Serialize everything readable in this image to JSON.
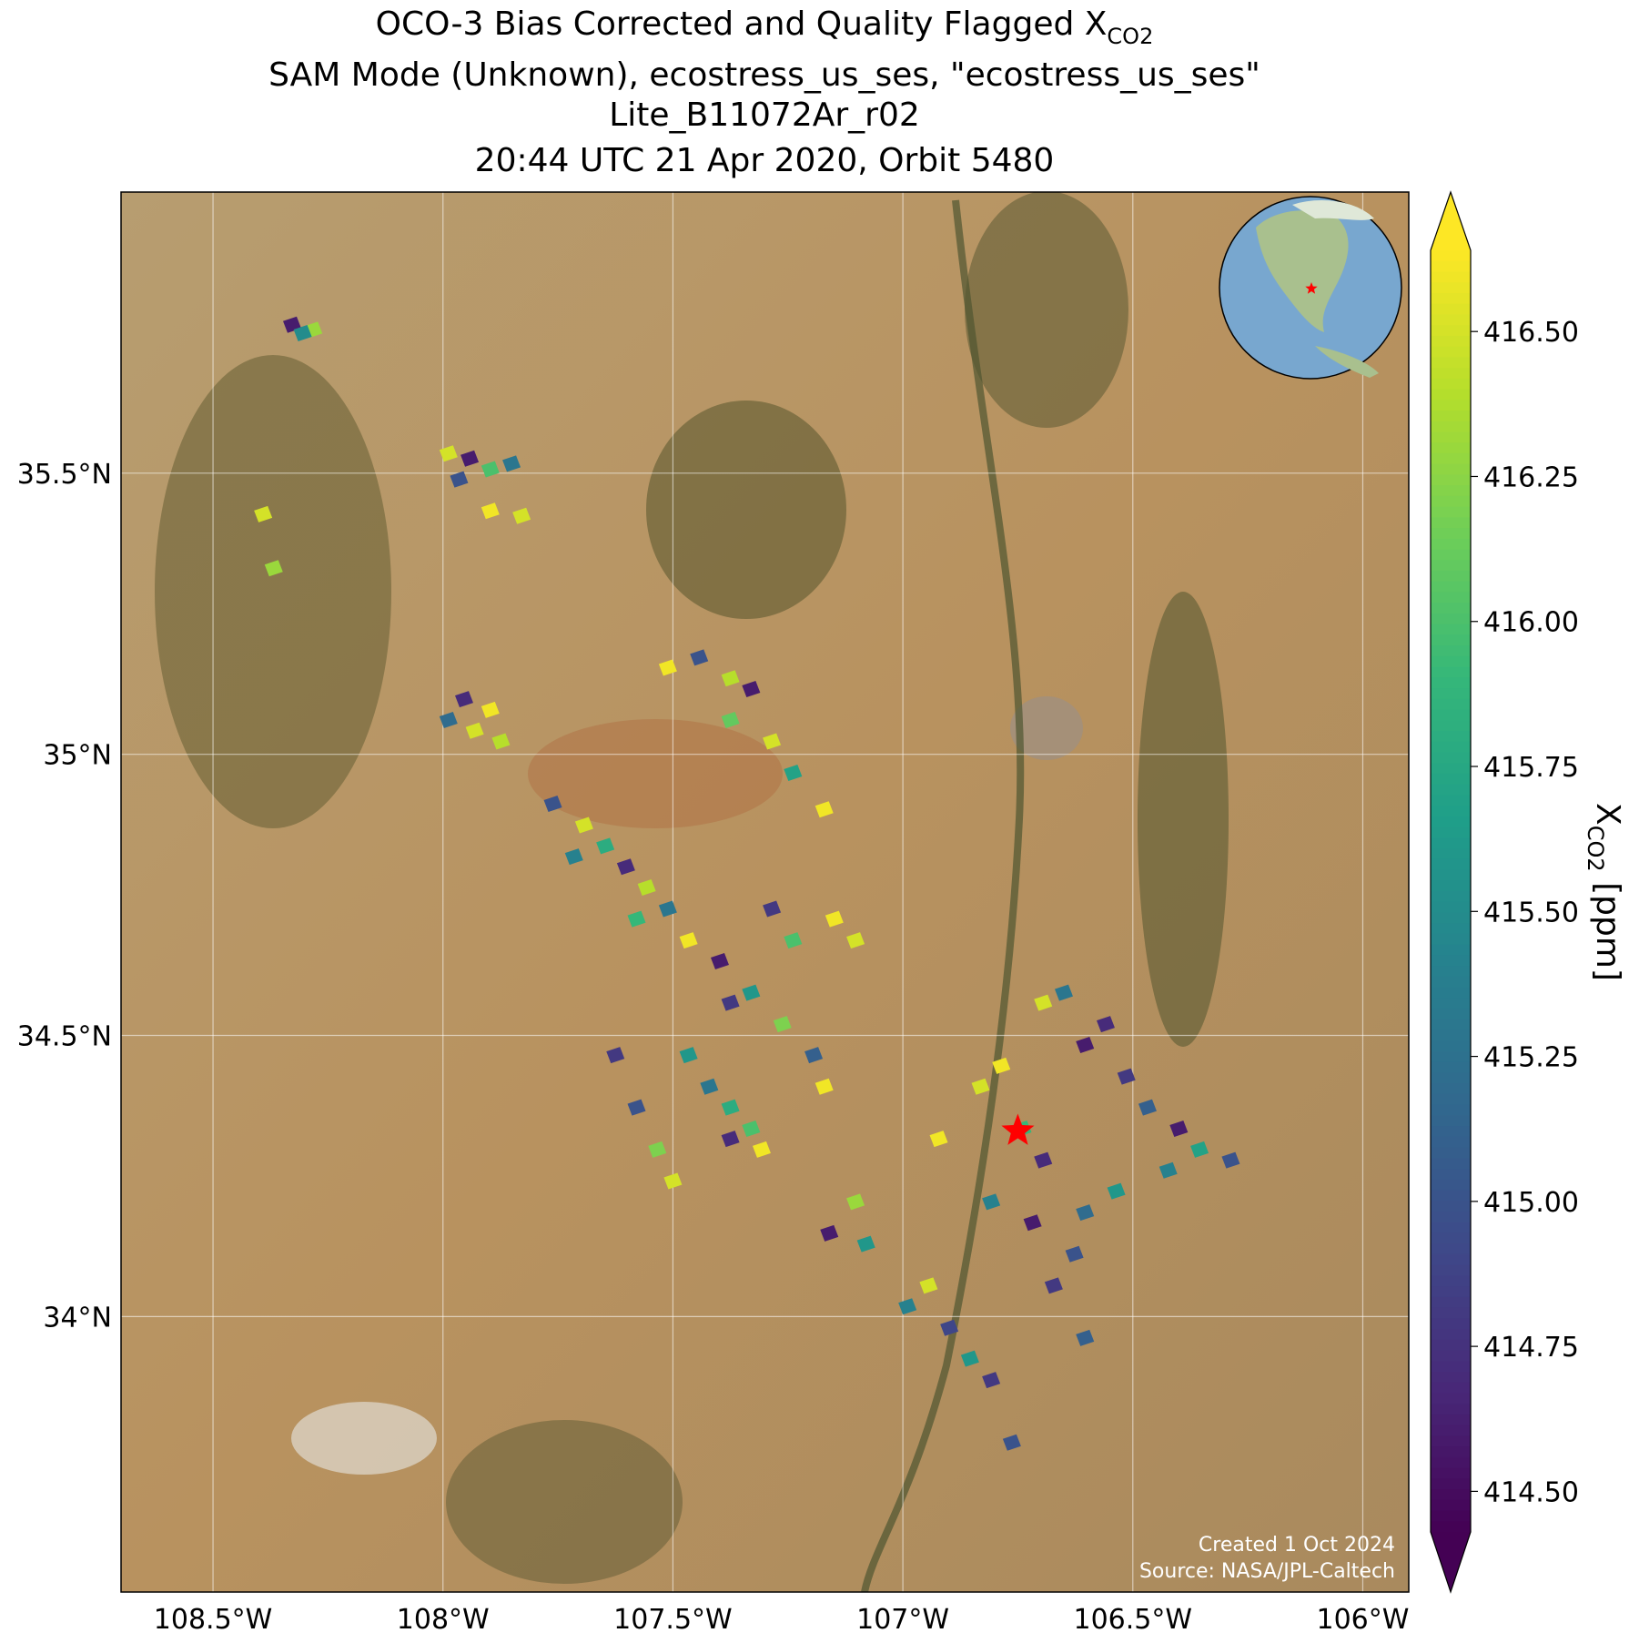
{
  "chart_data": {
    "type": "map",
    "title_lines": [
      "OCO-3 Bias Corrected and Quality Flagged X",
      "SAM Mode (Unknown), ecostress_us_ses, \"ecostress_us_ses\"",
      "Lite_B11072Ar_r02",
      "20:44 UTC 21 Apr 2020, Orbit 5480"
    ],
    "title_subscript": "CO2",
    "xlim": [
      -108.7,
      -105.9
    ],
    "ylim": [
      33.51,
      36.0
    ],
    "xticks": [
      {
        "value": -108.5,
        "label": "108.5°W"
      },
      {
        "value": -108,
        "label": "108°W"
      },
      {
        "value": -107.5,
        "label": "107.5°W"
      },
      {
        "value": -107,
        "label": "107°W"
      },
      {
        "value": -106.5,
        "label": "106.5°W"
      },
      {
        "value": -106,
        "label": "106°W"
      }
    ],
    "yticks": [
      {
        "value": 35.5,
        "label": "35.5°N"
      },
      {
        "value": 35,
        "label": "35°N"
      },
      {
        "value": 34.5,
        "label": "34.5°N"
      },
      {
        "value": 34,
        "label": "34°N"
      }
    ],
    "grid": true,
    "colormap": "viridis",
    "clim": [
      414.43,
      416.64
    ],
    "cticks": [
      {
        "value": 414.5,
        "label": "414.50"
      },
      {
        "value": 414.75,
        "label": "414.75"
      },
      {
        "value": 415,
        "label": "415.00"
      },
      {
        "value": 415.25,
        "label": "415.25"
      },
      {
        "value": 415.5,
        "label": "415.50"
      },
      {
        "value": 415.75,
        "label": "415.75"
      },
      {
        "value": 416,
        "label": "416.00"
      },
      {
        "value": 416.25,
        "label": "416.25"
      },
      {
        "value": 416.5,
        "label": "416.50"
      }
    ],
    "colorbar_label": {
      "text": "X",
      "subscript": "CO2",
      "suffix": " [ppm]"
    },
    "site": {
      "lon": -106.75,
      "lat": 34.33
    },
    "credits": [
      "Created 1 Oct 2024",
      "Source: NASA/JPL-Caltech"
    ],
    "soundings": {
      "lon": [
        -108.328,
        -108.282,
        -108.305,
        -107.988,
        -107.942,
        -107.897,
        -107.851,
        -107.897,
        -107.829,
        -107.965,
        -108.391,
        -108.368,
        -107.988,
        -107.931,
        -107.897,
        -107.954,
        -107.874,
        -107.511,
        -107.443,
        -107.375,
        -107.33,
        -107.375,
        -107.285,
        -107.239,
        -107.171,
        -107.761,
        -107.693,
        -107.647,
        -107.602,
        -107.557,
        -107.511,
        -107.466,
        -107.398,
        -107.33,
        -107.262,
        -107.194,
        -107.171,
        -107.715,
        -107.579,
        -107.375,
        -107.239,
        -107.149,
        -107.103,
        -107.285,
        -107.625,
        -107.579,
        -107.534,
        -107.5,
        -107.466,
        -107.421,
        -107.375,
        -107.33,
        -107.307,
        -107.375,
        -107.103,
        -107.08,
        -107.16,
        -106.99,
        -106.944,
        -106.899,
        -106.854,
        -106.808,
        -106.763,
        -106.922,
        -106.831,
        -106.786,
        -106.74,
        -106.695,
        -106.808,
        -106.718,
        -106.627,
        -106.604,
        -106.536,
        -106.672,
        -106.604,
        -106.695,
        -106.65,
        -106.604,
        -106.514,
        -106.468,
        -106.4,
        -106.355,
        -106.287,
        -106.559,
        -106.423
      ],
      "lat": [
        35.764,
        35.755,
        35.749,
        35.535,
        35.526,
        35.507,
        35.517,
        35.433,
        35.424,
        35.489,
        35.427,
        35.331,
        35.061,
        35.042,
        35.079,
        35.098,
        35.023,
        35.154,
        35.172,
        35.135,
        35.116,
        35.061,
        35.023,
        34.967,
        34.902,
        34.912,
        34.874,
        34.837,
        34.8,
        34.763,
        34.725,
        34.669,
        34.632,
        34.576,
        34.52,
        34.465,
        34.409,
        34.818,
        34.707,
        34.558,
        34.669,
        34.707,
        34.669,
        34.725,
        34.465,
        34.372,
        34.297,
        34.241,
        34.465,
        34.409,
        34.372,
        34.334,
        34.297,
        34.316,
        34.204,
        34.129,
        34.148,
        34.018,
        34.055,
        33.98,
        33.925,
        33.887,
        33.776,
        34.316,
        34.409,
        34.446,
        34.334,
        34.278,
        34.204,
        34.167,
        34.111,
        34.185,
        34.223,
        34.055,
        33.962,
        34.558,
        34.576,
        34.483,
        34.427,
        34.372,
        34.334,
        34.297,
        34.278,
        34.52,
        34.26
      ],
      "xco2": [
        414.6,
        416.3,
        415.5,
        416.5,
        414.6,
        416.0,
        415.3,
        416.6,
        416.5,
        415.0,
        416.5,
        416.3,
        415.2,
        416.5,
        416.6,
        414.7,
        416.4,
        416.6,
        415.0,
        416.4,
        414.6,
        416.1,
        416.5,
        415.7,
        416.6,
        415.0,
        416.5,
        415.8,
        414.7,
        416.4,
        415.3,
        416.6,
        414.6,
        415.6,
        416.2,
        415.1,
        416.6,
        415.4,
        415.9,
        414.8,
        416.0,
        416.6,
        416.5,
        414.8,
        414.8,
        415.0,
        416.2,
        416.5,
        415.6,
        415.3,
        415.8,
        416.0,
        416.6,
        414.7,
        416.3,
        415.6,
        414.6,
        415.4,
        416.5,
        414.9,
        415.6,
        414.8,
        415.0,
        416.6,
        416.5,
        416.6,
        415.9,
        414.7,
        415.4,
        414.6,
        415.0,
        415.2,
        415.6,
        414.8,
        415.1,
        416.5,
        415.3,
        414.6,
        414.8,
        415.1,
        414.6,
        415.7,
        415.0,
        414.7,
        415.4
      ]
    }
  }
}
